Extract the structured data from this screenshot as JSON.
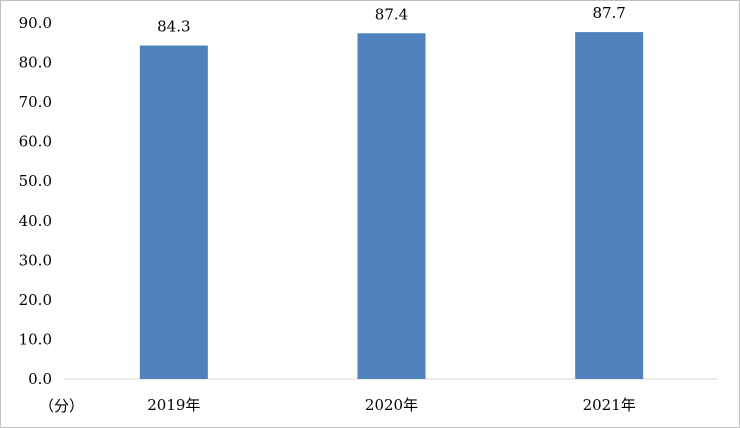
{
  "chart_data": {
    "type": "bar",
    "categories": [
      "2019年",
      "2020年",
      "2021年"
    ],
    "values": [
      84.3,
      87.4,
      87.7
    ],
    "data_labels": [
      "84.3",
      "87.4",
      "87.7"
    ],
    "y_ticks": [
      "0.0",
      "10.0",
      "20.0",
      "30.0",
      "40.0",
      "50.0",
      "60.0",
      "70.0",
      "80.0",
      "90.0"
    ],
    "ylim": [
      0,
      90
    ],
    "ylabel": "（分）",
    "xlabel": "",
    "title": "",
    "grid": false,
    "bar_color": "#4f81bd"
  }
}
